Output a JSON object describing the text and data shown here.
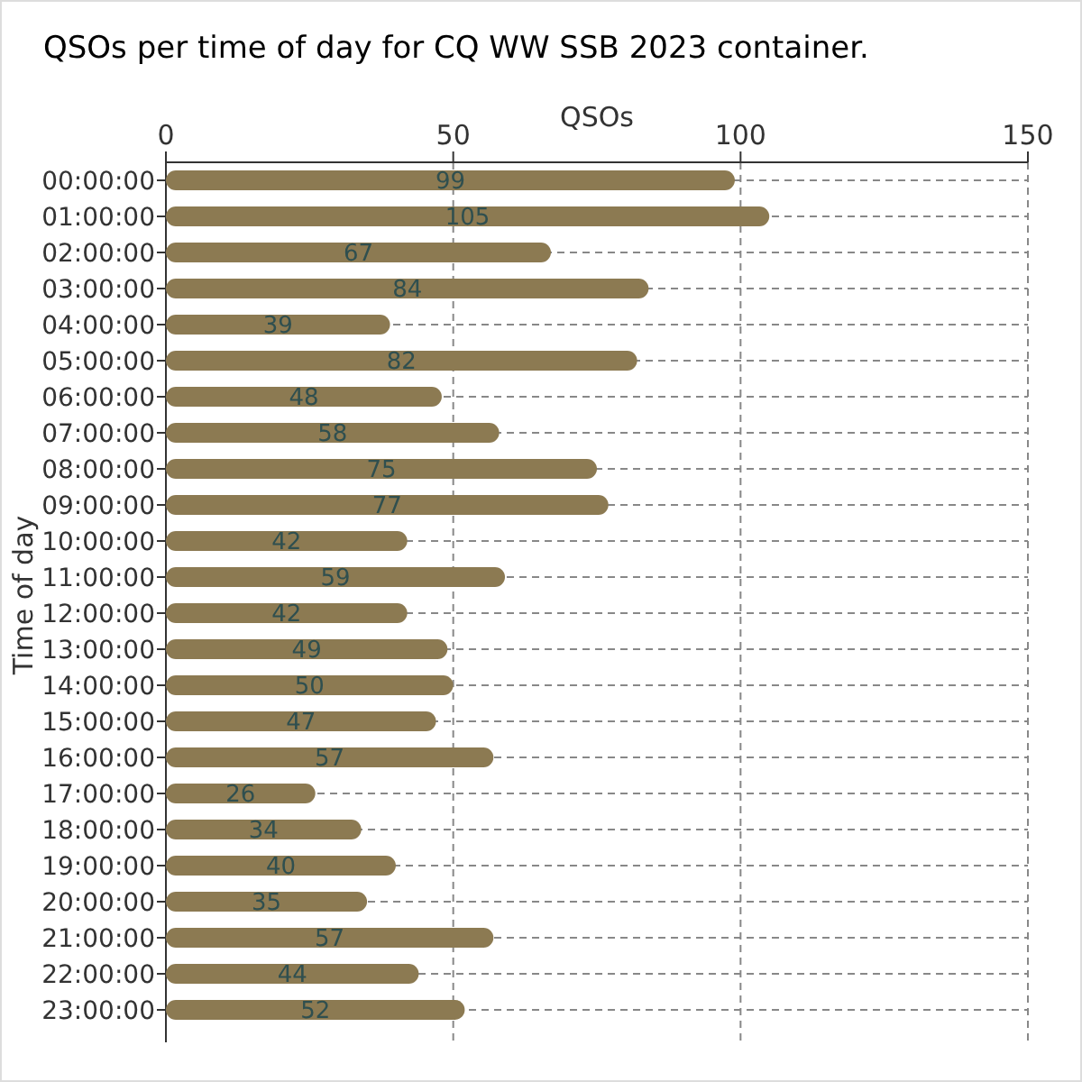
{
  "chart_data": {
    "type": "bar",
    "orientation": "horizontal",
    "title": "QSOs per time of day for CQ WW SSB 2023 container.",
    "xlabel": "QSOs",
    "ylabel": "Time of day",
    "categories": [
      "00:00:00",
      "01:00:00",
      "02:00:00",
      "03:00:00",
      "04:00:00",
      "05:00:00",
      "06:00:00",
      "07:00:00",
      "08:00:00",
      "09:00:00",
      "10:00:00",
      "11:00:00",
      "12:00:00",
      "13:00:00",
      "14:00:00",
      "15:00:00",
      "16:00:00",
      "17:00:00",
      "18:00:00",
      "19:00:00",
      "20:00:00",
      "21:00:00",
      "22:00:00",
      "23:00:00"
    ],
    "values": [
      99,
      105,
      67,
      84,
      39,
      82,
      48,
      58,
      75,
      77,
      42,
      59,
      42,
      49,
      50,
      47,
      57,
      26,
      34,
      40,
      35,
      57,
      44,
      52
    ],
    "color": "#8c7a52",
    "xlim": [
      0,
      150
    ],
    "xticks": [
      0,
      50,
      100,
      150
    ],
    "grid": true,
    "data_labels": true
  }
}
